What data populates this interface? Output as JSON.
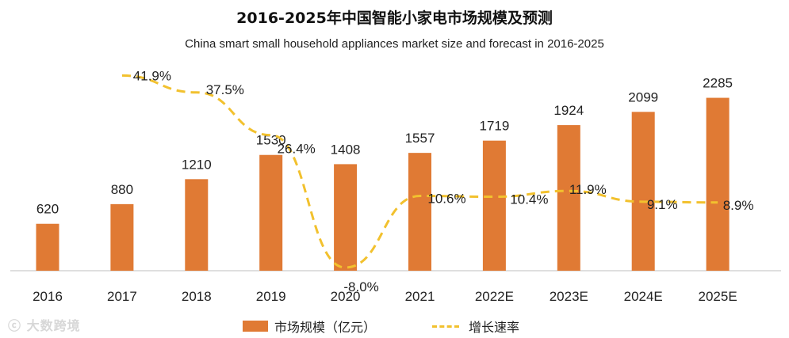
{
  "chart_data": {
    "type": "bar",
    "title": "2016-2025年中国智能小家电市场规模及预测",
    "subtitle": "China smart small household appliances market size and forecast in 2016-2025",
    "categories": [
      "2016",
      "2017",
      "2018",
      "2019",
      "2020",
      "2021",
      "2022E",
      "2023E",
      "2024E",
      "2025E"
    ],
    "series": [
      {
        "name": "市场规模（亿元）",
        "type": "bar",
        "values": [
          620,
          880,
          1210,
          1530,
          1408,
          1557,
          1719,
          1924,
          2099,
          2285
        ],
        "labels": [
          "620",
          "880",
          "1210",
          "1530",
          "1408",
          "1557",
          "1719",
          "1924",
          "2099",
          "2285"
        ]
      },
      {
        "name": "增长速率",
        "type": "line",
        "values": [
          null,
          41.9,
          37.5,
          26.4,
          -8.0,
          10.6,
          10.4,
          11.9,
          9.1,
          8.9
        ],
        "labels": [
          "",
          "41.9%",
          "37.5%",
          "26.4%",
          "-8.0%",
          "10.6%",
          "10.4%",
          "11.9%",
          "9.1%",
          "8.9%"
        ]
      }
    ],
    "y_bar_range": [
      0,
      2500
    ],
    "y_line_range": [
      -15,
      50
    ],
    "grid": false,
    "legend_position": "bottom"
  },
  "colors": {
    "bar": "#e07a34",
    "line": "#f2c12e",
    "axis": "#bfbfbf",
    "text": "#222222"
  },
  "watermark": "大数跨境"
}
